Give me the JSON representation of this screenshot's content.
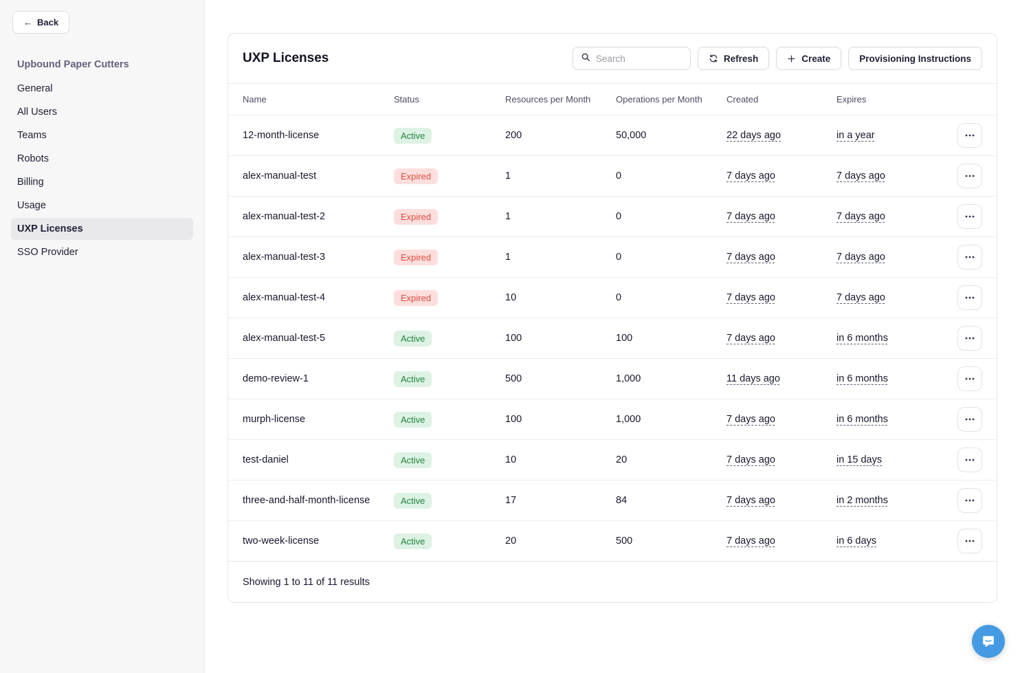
{
  "sidebar": {
    "back_label": "Back",
    "org_name": "Upbound Paper Cutters",
    "items": [
      {
        "label": "General",
        "active": false
      },
      {
        "label": "All Users",
        "active": false
      },
      {
        "label": "Teams",
        "active": false
      },
      {
        "label": "Robots",
        "active": false
      },
      {
        "label": "Billing",
        "active": false
      },
      {
        "label": "Usage",
        "active": false
      },
      {
        "label": "UXP Licenses",
        "active": true
      },
      {
        "label": "SSO Provider",
        "active": false
      }
    ]
  },
  "header": {
    "title": "UXP Licenses",
    "search_placeholder": "Search",
    "refresh_label": "Refresh",
    "create_label": "Create",
    "provisioning_label": "Provisioning Instructions"
  },
  "table": {
    "columns": [
      "Name",
      "Status",
      "Resources per Month",
      "Operations per Month",
      "Created",
      "Expires"
    ],
    "rows": [
      {
        "name": "12-month-license",
        "status": "Active",
        "resources": "200",
        "operations": "50,000",
        "created": "22 days ago",
        "expires": "in a year"
      },
      {
        "name": "alex-manual-test",
        "status": "Expired",
        "resources": "1",
        "operations": "0",
        "created": "7 days ago",
        "expires": "7 days ago"
      },
      {
        "name": "alex-manual-test-2",
        "status": "Expired",
        "resources": "1",
        "operations": "0",
        "created": "7 days ago",
        "expires": "7 days ago"
      },
      {
        "name": "alex-manual-test-3",
        "status": "Expired",
        "resources": "1",
        "operations": "0",
        "created": "7 days ago",
        "expires": "7 days ago"
      },
      {
        "name": "alex-manual-test-4",
        "status": "Expired",
        "resources": "10",
        "operations": "0",
        "created": "7 days ago",
        "expires": "7 days ago"
      },
      {
        "name": "alex-manual-test-5",
        "status": "Active",
        "resources": "100",
        "operations": "100",
        "created": "7 days ago",
        "expires": "in 6 months"
      },
      {
        "name": "demo-review-1",
        "status": "Active",
        "resources": "500",
        "operations": "1,000",
        "created": "11 days ago",
        "expires": "in 6 months"
      },
      {
        "name": "murph-license",
        "status": "Active",
        "resources": "100",
        "operations": "1,000",
        "created": "7 days ago",
        "expires": "in 6 months"
      },
      {
        "name": "test-daniel",
        "status": "Active",
        "resources": "10",
        "operations": "20",
        "created": "7 days ago",
        "expires": "in 15 days"
      },
      {
        "name": "three-and-half-month-license",
        "status": "Active",
        "resources": "17",
        "operations": "84",
        "created": "7 days ago",
        "expires": "in 2 months"
      },
      {
        "name": "two-week-license",
        "status": "Active",
        "resources": "20",
        "operations": "500",
        "created": "7 days ago",
        "expires": "in 6 days"
      }
    ],
    "footer": "Showing 1 to 11 of 11 results"
  },
  "colors": {
    "badge-active-bg": "#ddf2e4",
    "badge-active-text": "#20823f",
    "badge-expired-bg": "#fcdfdd",
    "badge-expired-text": "#df4a3f",
    "chat-blue": "#459be3"
  }
}
